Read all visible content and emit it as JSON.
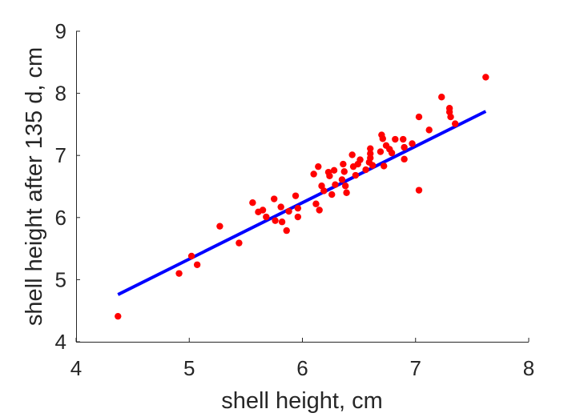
{
  "chart_data": {
    "type": "scatter",
    "title": "",
    "xlabel": "shell height, cm",
    "ylabel": "shell height after 135 d, cm",
    "xlim": [
      4,
      8
    ],
    "ylim": [
      4,
      9
    ],
    "xticks": [
      "4",
      "5",
      "6",
      "7",
      "8"
    ],
    "yticks": [
      "4",
      "5",
      "6",
      "7",
      "8",
      "9"
    ],
    "grid": false,
    "legend": "none",
    "colors": {
      "points": "#ff0000",
      "fit_line": "#0000ff",
      "axes": "#262626"
    },
    "series": [
      {
        "kind": "points",
        "x": [
          4.37,
          4.91,
          5.02,
          5.07,
          5.27,
          5.44,
          5.56,
          5.61,
          5.65,
          5.68,
          5.75,
          5.76,
          5.81,
          5.82,
          5.86,
          5.88,
          5.94,
          5.96,
          5.96,
          6.1,
          6.12,
          6.14,
          6.15,
          6.17,
          6.19,
          6.23,
          6.24,
          6.26,
          6.28,
          6.29,
          6.35,
          6.36,
          6.37,
          6.38,
          6.39,
          6.44,
          6.45,
          6.47,
          6.49,
          6.51,
          6.56,
          6.59,
          6.6,
          6.6,
          6.6,
          6.62,
          6.69,
          6.7,
          6.71,
          6.72,
          6.74,
          6.77,
          6.79,
          6.82,
          6.89,
          6.9,
          6.9,
          6.97,
          7.03,
          7.03,
          7.12,
          7.23,
          7.3,
          7.3,
          7.31,
          7.35,
          7.62
        ],
        "y": [
          4.41,
          5.1,
          5.38,
          5.24,
          5.86,
          5.59,
          6.24,
          6.09,
          6.12,
          6.01,
          6.3,
          5.95,
          6.17,
          5.93,
          5.79,
          6.1,
          6.35,
          6.15,
          6.01,
          6.7,
          6.22,
          6.82,
          6.12,
          6.51,
          6.43,
          6.73,
          6.67,
          6.37,
          6.76,
          6.53,
          6.61,
          6.86,
          6.74,
          6.51,
          6.4,
          7.01,
          6.82,
          6.68,
          6.86,
          6.93,
          6.77,
          6.89,
          7.03,
          7.11,
          6.96,
          6.84,
          7.06,
          7.33,
          7.27,
          6.83,
          7.16,
          7.1,
          7.04,
          7.26,
          7.26,
          7.13,
          6.94,
          7.19,
          7.62,
          6.44,
          7.41,
          7.94,
          7.76,
          7.7,
          7.62,
          7.51,
          8.26
        ]
      },
      {
        "kind": "fit",
        "x": [
          4.37,
          7.62
        ],
        "y": [
          4.76,
          7.71
        ]
      }
    ]
  }
}
